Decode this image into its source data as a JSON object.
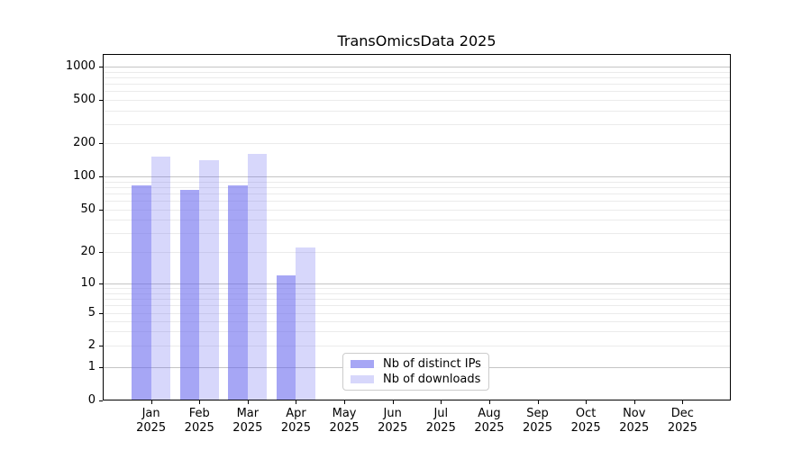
{
  "title": "TransOmicsData 2025",
  "chart_data": {
    "type": "bar",
    "title": "TransOmicsData 2025",
    "xlabel": "",
    "ylabel": "",
    "yscale": "symlog",
    "ylim": [
      0,
      1300
    ],
    "yticks": [
      0,
      1,
      2,
      5,
      10,
      20,
      50,
      100,
      200,
      500,
      1000
    ],
    "grid": "on",
    "categories": [
      "Jan 2025",
      "Feb 2025",
      "Mar 2025",
      "Apr 2025",
      "May 2025",
      "Jun 2025",
      "Jul 2025",
      "Aug 2025",
      "Sep 2025",
      "Oct 2025",
      "Nov 2025",
      "Dec 2025"
    ],
    "series": [
      {
        "name": "Nb of distinct IPs",
        "color": "#6666ee",
        "alpha": 0.58,
        "values": [
          83,
          76,
          83,
          12,
          0,
          0,
          0,
          0,
          0,
          0,
          0,
          0
        ]
      },
      {
        "name": "Nb of downloads",
        "color": "#6666ee",
        "alpha": 0.26,
        "values": [
          150,
          139,
          159,
          22,
          0,
          0,
          0,
          0,
          0,
          0,
          0,
          0
        ]
      }
    ],
    "legend_position": "lower center"
  },
  "colors": {
    "bar_distinct_ips": "#a7a7f7",
    "bar_downloads": "#d9d9f8",
    "grid_major": "#c4c4c4",
    "grid_minor": "#ebebeb",
    "spine": "#000000",
    "legend_border": "#cccccc",
    "text": "#000000"
  }
}
